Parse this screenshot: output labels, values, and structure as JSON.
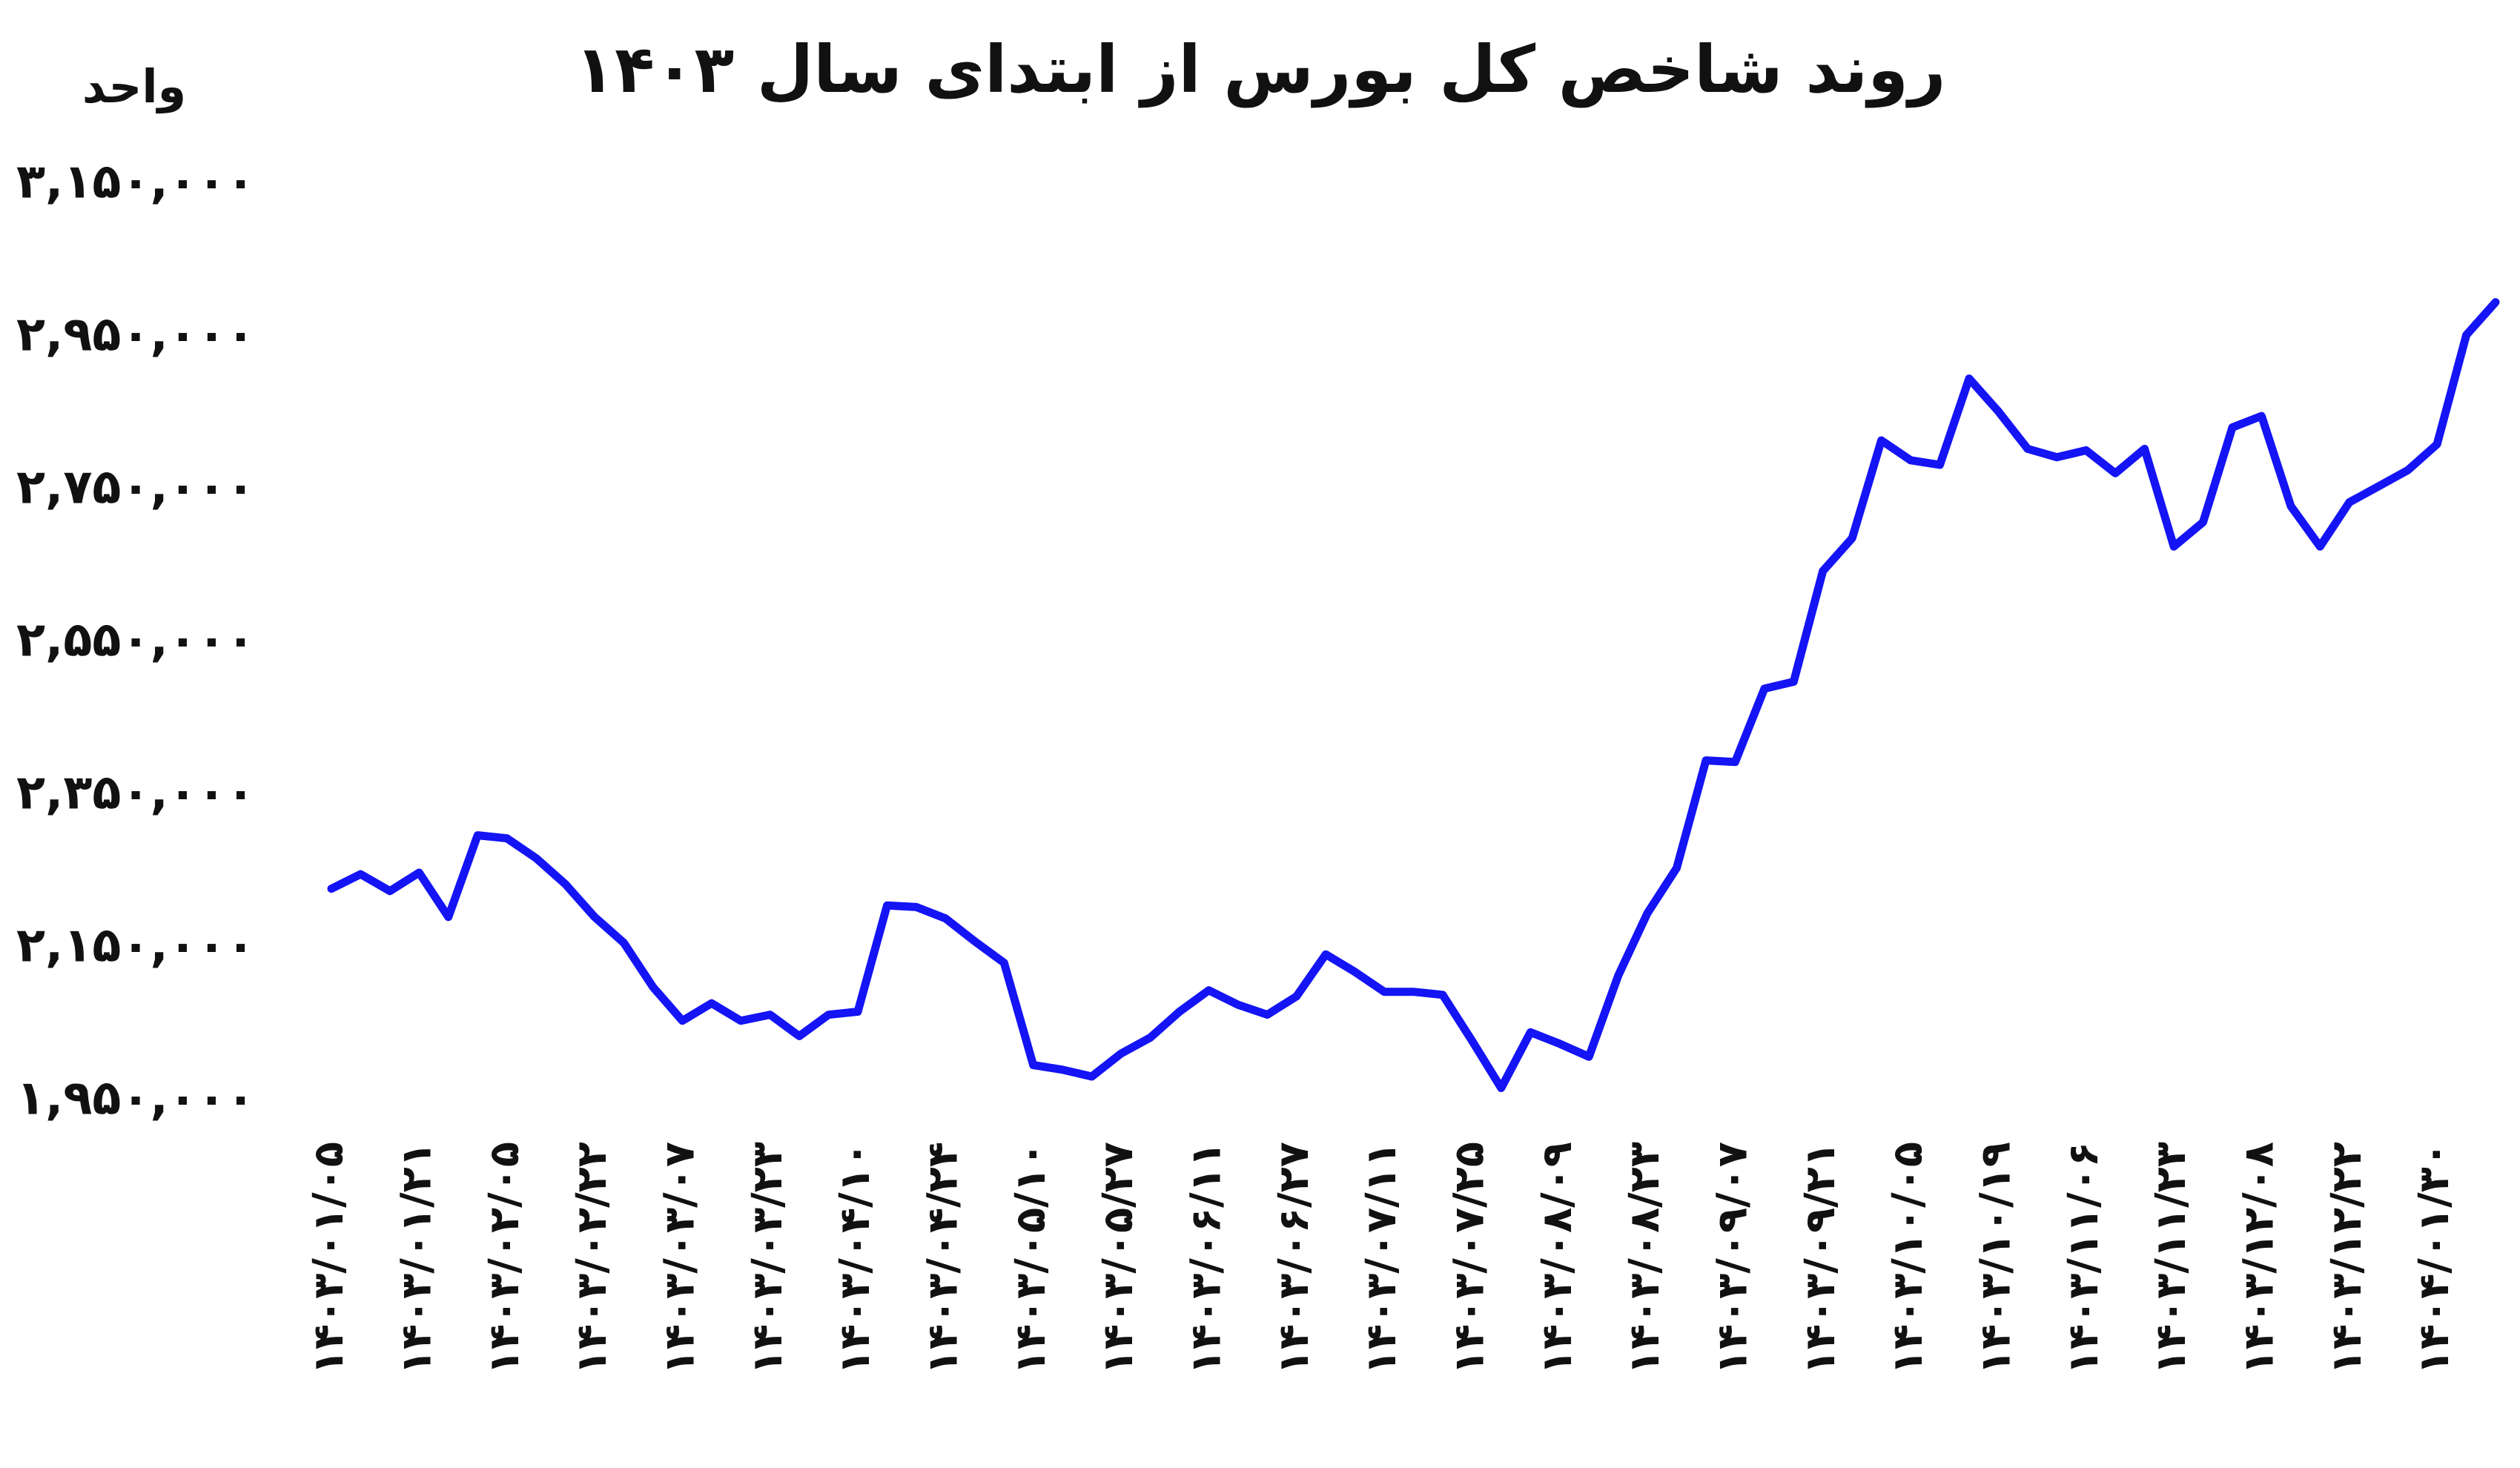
{
  "chart_data": {
    "type": "line",
    "title": "روند شاخص کل بورس از ابتدای سال ۱۴۰۳",
    "y_label": "واحد",
    "color": "#1414f5",
    "categories": [
      "۱۴۰۳/۰۱/۰۵",
      null,
      null,
      "۱۴۰۳/۰۱/۲۱",
      null,
      null,
      "۱۴۰۳/۰۲/۰۵",
      null,
      null,
      "۱۴۰۳/۰۲/۲۲",
      null,
      null,
      "۱۴۰۳/۰۳/۰۷",
      null,
      null,
      "۱۴۰۳/۰۳/۲۳",
      null,
      null,
      "۱۴۰۳/۰۴/۱۰",
      null,
      null,
      "۱۴۰۳/۰۴/۲۴",
      null,
      null,
      "۱۴۰۳/۰۵/۱۰",
      null,
      null,
      "۱۴۰۳/۰۵/۲۷",
      null,
      null,
      "۱۴۰۳/۰۶/۱۱",
      null,
      null,
      "۱۴۰۳/۰۶/۲۷",
      null,
      null,
      "۱۴۰۳/۰۷/۱۱",
      null,
      null,
      "۱۴۰۳/۰۷/۲۵",
      null,
      null,
      "۱۴۰۳/۰۸/۰۹",
      null,
      null,
      "۱۴۰۳/۰۸/۲۳",
      null,
      null,
      "۱۴۰۳/۰۹/۰۷",
      null,
      null,
      "۱۴۰۳/۰۹/۲۱",
      null,
      null,
      "۱۴۰۳/۱۰/۰۵",
      null,
      null,
      "۱۴۰۳/۱۰/۱۹",
      null,
      null,
      "۱۴۰۳/۱۱/۰۶",
      null,
      null,
      "۱۴۰۳/۱۱/۲۳",
      null,
      null,
      "۱۴۰۳/۱۲/۰۸",
      null,
      null,
      "۱۴۰۳/۱۲/۲۲",
      null,
      null,
      "۱۴۰۴/۰۱/۳۰",
      null,
      null
    ],
    "values": [
      2228000,
      2247000,
      2225000,
      2249000,
      2191000,
      2298000,
      2294000,
      2268000,
      2234000,
      2191000,
      2157000,
      2099000,
      2055000,
      2078000,
      2055000,
      2063000,
      2035000,
      2063000,
      2067000,
      2206000,
      2204000,
      2189000,
      2159000,
      2131000,
      1997000,
      1991000,
      1982000,
      2012000,
      2033000,
      2067000,
      2095000,
      2076000,
      2063000,
      2087000,
      2142000,
      2119000,
      2093000,
      2093000,
      2089000,
      2029000,
      1967000,
      2040000,
      2025000,
      2008000,
      2114000,
      2196000,
      2255000,
      2396000,
      2394000,
      2490000,
      2499000,
      2644000,
      2687000,
      2815000,
      2789000,
      2783000,
      2896000,
      2853000,
      2804000,
      2793000,
      2802000,
      2772000,
      2804000,
      2676000,
      2708000,
      2832000,
      2847000,
      2729000,
      2676000,
      2734000,
      2755000,
      2776000,
      2810000,
      2953000,
      2996000
    ],
    "ylim": [
      1950000,
      3150000
    ],
    "yticks": [
      {
        "value": 1950000,
        "label": "۱,۹۵۰,۰۰۰"
      },
      {
        "value": 2150000,
        "label": "۲,۱۵۰,۰۰۰"
      },
      {
        "value": 2350000,
        "label": "۲,۳۵۰,۰۰۰"
      },
      {
        "value": 2550000,
        "label": "۲,۵۵۰,۰۰۰"
      },
      {
        "value": 2750000,
        "label": "۲,۷۵۰,۰۰۰"
      },
      {
        "value": 2950000,
        "label": "۲,۹۵۰,۰۰۰"
      },
      {
        "value": 3150000,
        "label": "۳,۱۵۰,۰۰۰"
      }
    ],
    "grid": false
  }
}
